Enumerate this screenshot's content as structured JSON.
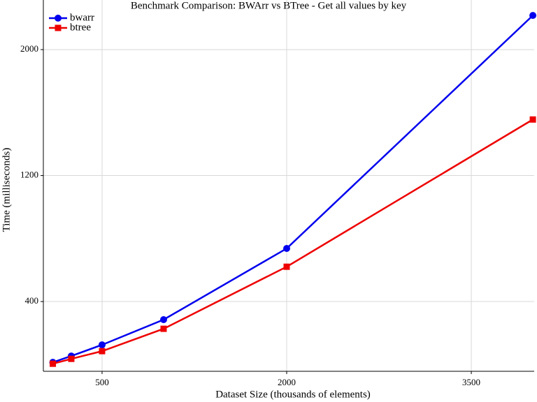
{
  "chart_data": {
    "type": "line",
    "title": "Benchmark Comparison: BWArr vs BTree - Get all values by key",
    "x_label": "Dataset Size (thousands of elements)",
    "y_label": "Time (milliseconds)",
    "x": [
      100,
      250,
      500,
      1000,
      2000,
      4000
    ],
    "series": [
      {
        "name": "bwarr",
        "color": "#0000ee",
        "marker": "circle",
        "values": [
          14,
          54,
          125,
          285,
          737,
          2217
        ]
      },
      {
        "name": "btree",
        "color": "#ee0000",
        "marker": "square",
        "values": [
          5,
          36,
          85,
          227,
          621,
          1556
        ]
      }
    ],
    "xlim": [
      23,
      4011
    ],
    "xticks": [
      500,
      2000,
      3500
    ],
    "ylim": [
      -43,
      2315
    ],
    "yticks": [
      400,
      1200,
      2000
    ],
    "grid": true,
    "legend": "top-left"
  }
}
